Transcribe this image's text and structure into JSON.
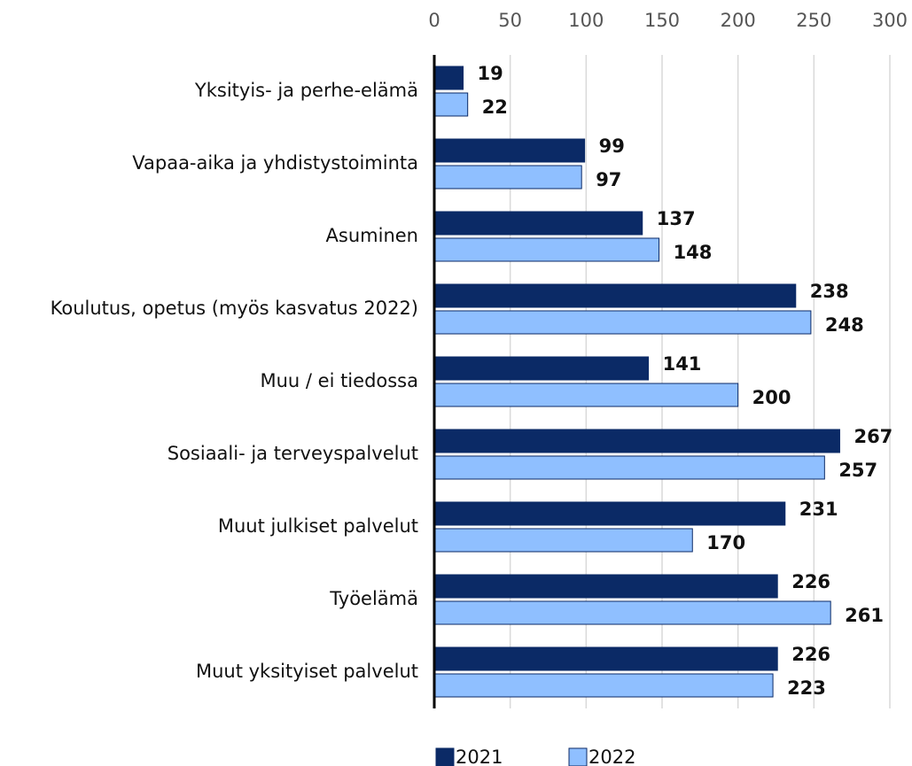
{
  "chart_data": {
    "type": "bar",
    "orientation": "horizontal",
    "categories": [
      "Yksityis- ja perhe-elämä",
      "Vapaa-aika ja yhdistystoiminta",
      "Asuminen",
      "Koulutus, opetus (myös kasvatus 2022)",
      "Muu / ei tiedossa",
      "Sosiaali- ja terveyspalvelut",
      "Muut julkiset palvelut",
      "Työelämä",
      "Muut yksityiset palvelut"
    ],
    "series": [
      {
        "name": "2021",
        "color": "#0b2a66",
        "values": [
          19,
          99,
          137,
          238,
          141,
          267,
          231,
          226,
          226
        ]
      },
      {
        "name": "2022",
        "color": "#8fbfff",
        "values": [
          22,
          97,
          148,
          248,
          200,
          257,
          170,
          261,
          223
        ]
      }
    ],
    "xlim": [
      0,
      300
    ],
    "xticks": [
      0,
      50,
      100,
      150,
      200,
      250,
      300
    ],
    "grid": true,
    "legend": "bottom"
  }
}
